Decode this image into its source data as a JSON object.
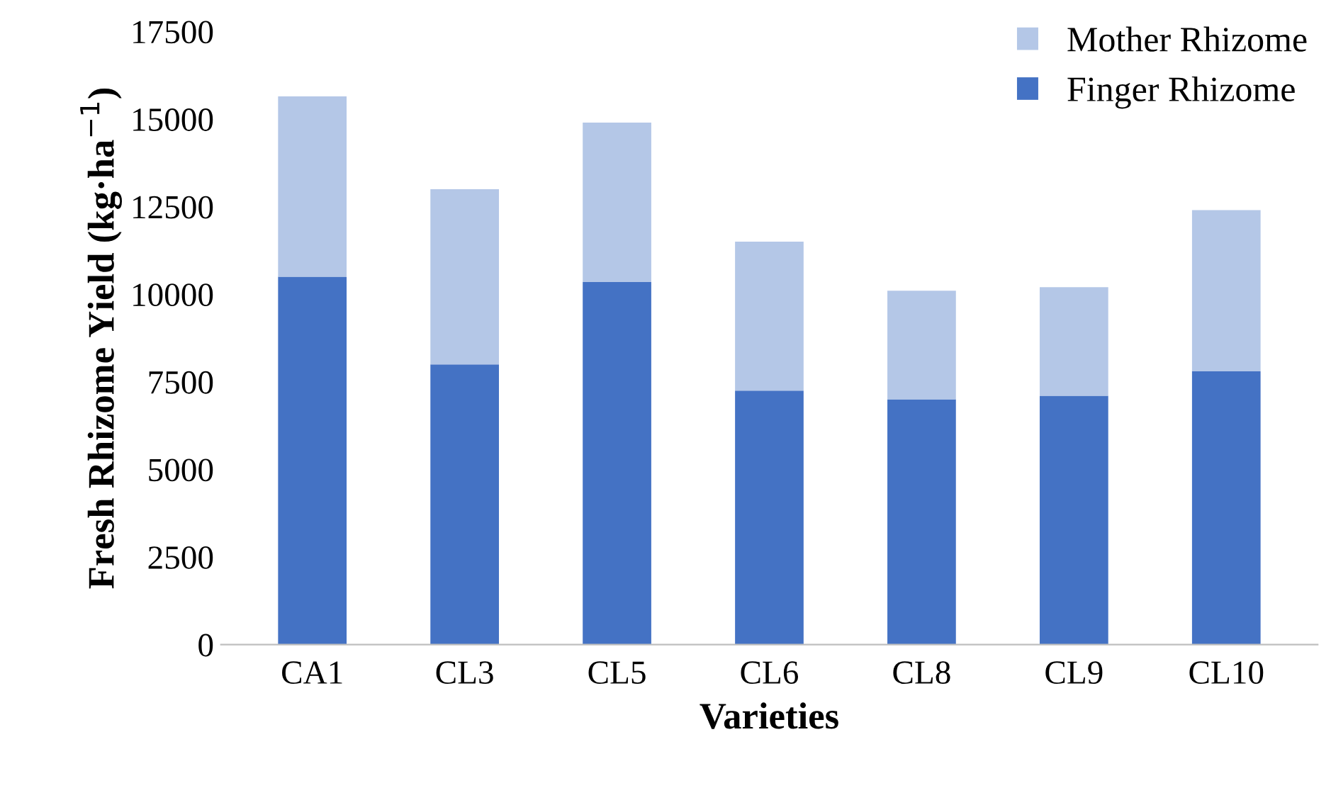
{
  "chart_data": {
    "type": "bar",
    "stacked": true,
    "xlabel": "Varieties",
    "ylabel": "Fresh Rhizome Yield (kg·ha$^{−1}$)",
    "categories": [
      "CA1",
      "CL3",
      "CL5",
      "CL6",
      "CL8",
      "CL9",
      "CL10"
    ],
    "series": [
      {
        "name": "Finger Rhizome",
        "color": "#4472c4",
        "values": [
          10500,
          8000,
          10350,
          7250,
          7000,
          7100,
          7800
        ]
      },
      {
        "name": "Mother Rhizome",
        "color": "#b4c7e7",
        "values": [
          5150,
          5000,
          4550,
          4250,
          3100,
          3100,
          4600
        ]
      }
    ],
    "ylim": [
      0,
      17500
    ],
    "yticks": [
      0,
      2500,
      5000,
      7500,
      10000,
      12500,
      15000,
      17500
    ],
    "grid": false,
    "legend": "top right"
  }
}
